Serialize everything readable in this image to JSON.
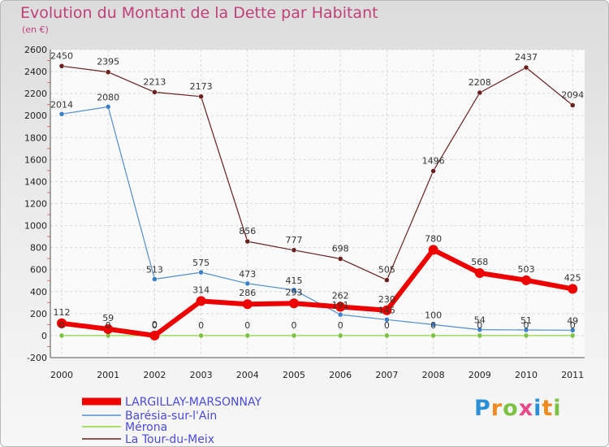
{
  "title": "Evolution du Montant de la Dette par Habitant",
  "unit": "(en €)",
  "brand": {
    "letters": [
      "P",
      "r",
      "o",
      "x",
      "i",
      "t",
      "i"
    ],
    "colors": [
      "#2a8fd6",
      "#f08a1e",
      "#7cc242",
      "#e64a8a",
      "#2a8fd6",
      "#f08a1e",
      "#7cc242"
    ]
  },
  "chart_data": {
    "type": "line",
    "x": [
      "2000",
      "2001",
      "2002",
      "2003",
      "2004",
      "2005",
      "2006",
      "2007",
      "2008",
      "2009",
      "2010",
      "2011"
    ],
    "ylim": [
      -200,
      2600
    ],
    "yticks": [
      "-200",
      "0",
      "200",
      "400",
      "600",
      "800",
      "1000",
      "1200",
      "1400",
      "1600",
      "1800",
      "2000",
      "2200",
      "2400",
      "2600"
    ],
    "grid": true,
    "legend": "bottom-left",
    "series": [
      {
        "name": "LARGILLAY-MARSONNAY",
        "color": "#ee0000",
        "values": [
          112,
          59,
          0,
          314,
          286,
          293,
          262,
          230,
          780,
          568,
          503,
          425
        ]
      },
      {
        "name": "Barésia-sur-l'Ain",
        "color": "#4d8fd0",
        "values": [
          2014,
          2080,
          513,
          575,
          473,
          415,
          191,
          145,
          100,
          54,
          51,
          49
        ]
      },
      {
        "name": "Mérona",
        "color": "#8ed63a",
        "values": [
          0,
          0,
          0,
          0,
          0,
          0,
          0,
          0,
          0,
          0,
          0,
          0
        ]
      },
      {
        "name": "La Tour-du-Meix",
        "color": "#6b1f1f",
        "values": [
          2450,
          2395,
          2213,
          2173,
          856,
          777,
          698,
          505,
          1496,
          2208,
          2437,
          2094
        ]
      }
    ]
  }
}
